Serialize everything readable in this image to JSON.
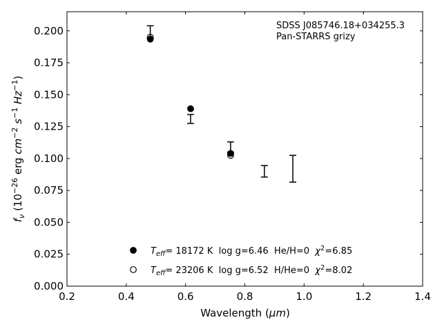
{
  "chart_data": {
    "type": "scatter",
    "title": "",
    "xlabel": "Wavelength",
    "xlabel_unit": "μm",
    "ylabel": "10",
    "ylabel_symbol": "f",
    "ylabel_symbol_sub": "ν",
    "ylabel_exp": "−26",
    "ylabel_units": "erg",
    "ylabel_cm": "cm",
    "ylabel_cm_exp": "−2",
    "ylabel_s": "s",
    "ylabel_s_exp": "−1",
    "ylabel_hz": "Hz",
    "ylabel_hz_exp": "−1",
    "xlim": [
      0.2,
      1.4
    ],
    "ylim": [
      0.0,
      0.215
    ],
    "xticks": [
      "0.2",
      "0.4",
      "0.6",
      "0.8",
      "1.0",
      "1.2",
      "1.4"
    ],
    "yticks": [
      "0.000",
      "0.025",
      "0.050",
      "0.075",
      "0.100",
      "0.125",
      "0.150",
      "0.175",
      "0.200"
    ],
    "grid": false,
    "annotations": [
      "SDSS J085746.18+034255.3",
      "Pan-STARRS grizy"
    ],
    "observed": {
      "x": [
        0.481,
        0.617,
        0.752,
        0.866,
        0.962
      ],
      "y": [
        0.199,
        0.131,
        0.109,
        0.09,
        0.092
      ],
      "yerr": [
        0.005,
        0.0035,
        0.004,
        0.0045,
        0.0105
      ]
    },
    "series": [
      {
        "marker": "filled",
        "label": {
          "teff_prefix": "T",
          "teff_sub": "eff",
          "teff_text": "= 18172 K  log g=6.46  He/H=0  ",
          "chi": "χ",
          "chi_exp": "2",
          "chi_text": "=6.85"
        },
        "x": [
          0.481,
          0.617,
          0.752
        ],
        "y": [
          0.1935,
          0.139,
          0.104
        ]
      },
      {
        "marker": "open",
        "label": {
          "teff_prefix": "T",
          "teff_sub": "eff",
          "teff_text": "= 23206 K  log g=6.52  H/He=0  ",
          "chi": "χ",
          "chi_exp": "2",
          "chi_text": "=8.02"
        },
        "x": [
          0.481,
          0.752
        ],
        "y": [
          0.195,
          0.1025
        ]
      }
    ]
  }
}
